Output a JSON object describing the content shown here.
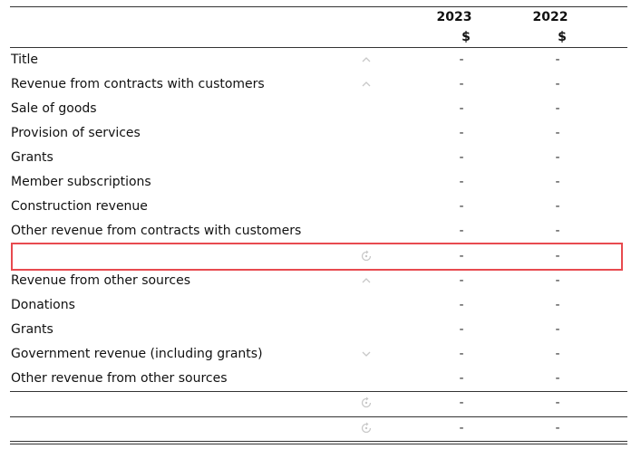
{
  "header": {
    "col_2023": "2023",
    "col_2022": "2022",
    "unit_2023": "$",
    "unit_2022": "$"
  },
  "rows": [
    {
      "label": "Title",
      "v2023": "-",
      "v2022": "-",
      "icon": "chevron-up-icon"
    },
    {
      "label": "Revenue from contracts with customers",
      "v2023": "-",
      "v2022": "-",
      "icon": "chevron-up-icon"
    },
    {
      "label": "Sale of goods",
      "v2023": "-",
      "v2022": "-",
      "icon": ""
    },
    {
      "label": "Provision of services",
      "v2023": "-",
      "v2022": "-",
      "icon": ""
    },
    {
      "label": "Grants",
      "v2023": "-",
      "v2022": "-",
      "icon": ""
    },
    {
      "label": "Member subscriptions",
      "v2023": "-",
      "v2022": "-",
      "icon": ""
    },
    {
      "label": "Construction revenue",
      "v2023": "-",
      "v2022": "-",
      "icon": ""
    },
    {
      "label": "Other revenue from contracts with customers",
      "v2023": "-",
      "v2022": "-",
      "icon": ""
    },
    {
      "label": "",
      "v2023": "-",
      "v2022": "-",
      "icon": "refresh-icon"
    },
    {
      "label": "Revenue from other sources",
      "v2023": "-",
      "v2022": "-",
      "icon": "chevron-up-icon"
    },
    {
      "label": "Donations",
      "v2023": "-",
      "v2022": "-",
      "icon": ""
    },
    {
      "label": "Grants",
      "v2023": "-",
      "v2022": "-",
      "icon": ""
    },
    {
      "label": "Government revenue (including grants)",
      "v2023": "-",
      "v2022": "-",
      "icon": "chevron-down-icon"
    },
    {
      "label": "Other revenue from other sources",
      "v2023": "-",
      "v2022": "-",
      "icon": ""
    },
    {
      "label": "",
      "v2023": "-",
      "v2022": "-",
      "icon": "refresh-icon"
    },
    {
      "label": "",
      "v2023": "-",
      "v2022": "-",
      "icon": "refresh-icon"
    }
  ],
  "colors": {
    "highlight_border": "#e84a4f",
    "icon": "#c8c8c8",
    "rule": "#333333"
  }
}
